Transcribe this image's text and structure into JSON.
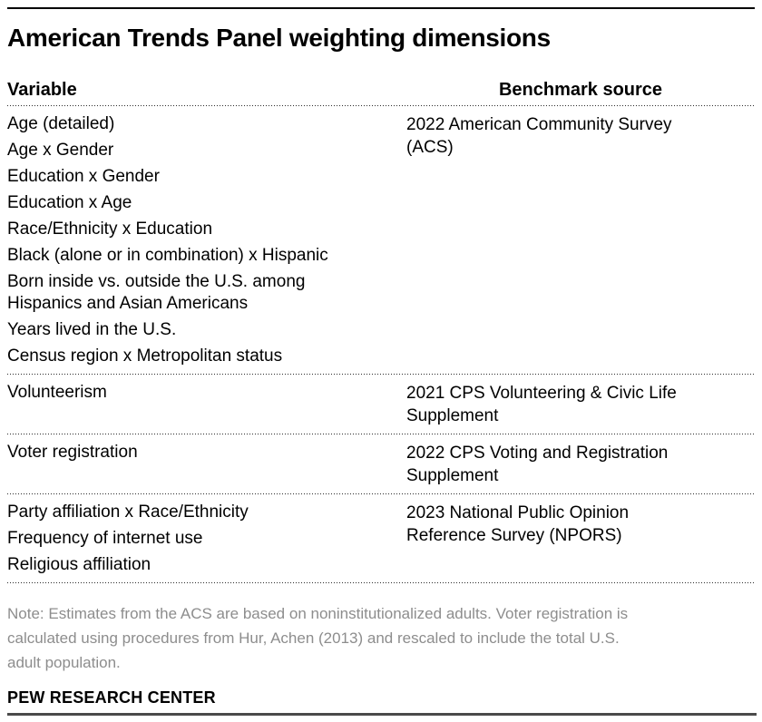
{
  "chart_data": {
    "type": "table",
    "title": "American Trends Panel weighting dimensions",
    "columns": [
      "Variable",
      "Benchmark source"
    ],
    "groups": [
      {
        "variables": [
          "Age (detailed)",
          "Age x Gender",
          "Education x Gender",
          "Education x Age",
          "Race/Ethnicity x Education",
          "Black (alone or in combination) x Hispanic",
          "Born inside vs. outside the U.S. among\nHispanics and Asian Americans",
          "Years lived in the U.S.",
          "Census region x Metropolitan status"
        ],
        "source": "2022 American Community Survey\n(ACS)"
      },
      {
        "variables": [
          "Volunteerism"
        ],
        "source": "2021 CPS Volunteering & Civic Life\nSupplement"
      },
      {
        "variables": [
          "Voter registration"
        ],
        "source": "2022 CPS Voting and Registration\nSupplement"
      },
      {
        "variables": [
          "Party affiliation x Race/Ethnicity",
          "Frequency of internet use",
          "Religious affiliation"
        ],
        "source": "2023 National Public Opinion\nReference Survey (NPORS)"
      }
    ],
    "note": "Note: Estimates from the ACS are based on noninstitutionalized adults. Voter registration is\ncalculated using procedures from Hur, Achen (2013) and rescaled to include the total U.S.\nadult population.",
    "footer": "PEW RESEARCH CENTER"
  },
  "colors": {
    "text": "#000000",
    "note_gray": "#8d8d8d",
    "top_rule": "#000000",
    "bottom_rule": "#4a4a4a",
    "divider_dots": "#2b2b2b"
  }
}
